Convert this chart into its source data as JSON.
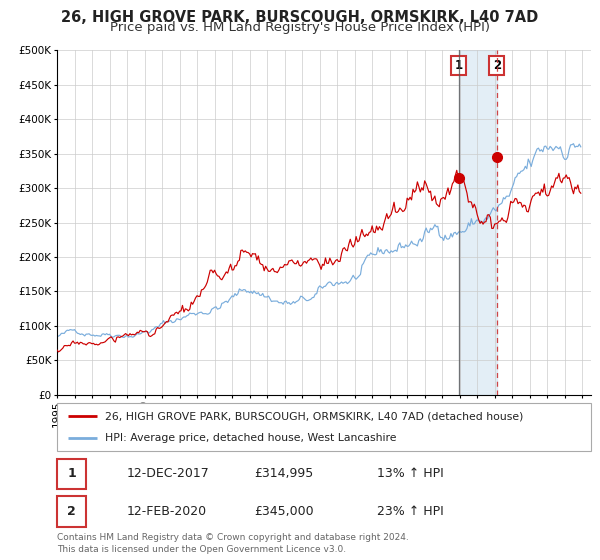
{
  "title_line1": "26, HIGH GROVE PARK, BURSCOUGH, ORMSKIRK, L40 7AD",
  "title_line2": "Price paid vs. HM Land Registry's House Price Index (HPI)",
  "ylim": [
    0,
    500000
  ],
  "yticks": [
    0,
    50000,
    100000,
    150000,
    200000,
    250000,
    300000,
    350000,
    400000,
    450000,
    500000
  ],
  "ytick_labels": [
    "£0",
    "£50K",
    "£100K",
    "£150K",
    "£200K",
    "£250K",
    "£300K",
    "£350K",
    "£400K",
    "£450K",
    "£500K"
  ],
  "xlim_start": 1995.0,
  "xlim_end": 2025.5,
  "xticks": [
    1995,
    1996,
    1997,
    1998,
    1999,
    2000,
    2001,
    2002,
    2003,
    2004,
    2005,
    2006,
    2007,
    2008,
    2009,
    2010,
    2011,
    2012,
    2013,
    2014,
    2015,
    2016,
    2017,
    2018,
    2019,
    2020,
    2021,
    2022,
    2023,
    2024,
    2025
  ],
  "red_line_color": "#cc0000",
  "blue_line_color": "#7aaddc",
  "marker1_x": 2017.95,
  "marker1_y": 314995,
  "marker2_x": 2020.12,
  "marker2_y": 345000,
  "vline1_x": 2017.95,
  "vline2_x": 2020.12,
  "shade_start": 2017.95,
  "shade_end": 2020.12,
  "legend_label1": "26, HIGH GROVE PARK, BURSCOUGH, ORMSKIRK, L40 7AD (detached house)",
  "legend_label2": "HPI: Average price, detached house, West Lancashire",
  "annotation1_num": "1",
  "annotation2_num": "2",
  "ann1_x": 2017.95,
  "ann2_x": 2020.12,
  "ann_y": 478000,
  "table_row1": [
    "1",
    "12-DEC-2017",
    "£314,995",
    "13% ↑ HPI"
  ],
  "table_row2": [
    "2",
    "12-FEB-2020",
    "£345,000",
    "23% ↑ HPI"
  ],
  "footer": "Contains HM Land Registry data © Crown copyright and database right 2024.\nThis data is licensed under the Open Government Licence v3.0.",
  "bg_color": "#ffffff",
  "grid_color": "#cccccc",
  "title_fontsize": 10.5,
  "subtitle_fontsize": 9.5,
  "axis_fontsize": 7.5
}
